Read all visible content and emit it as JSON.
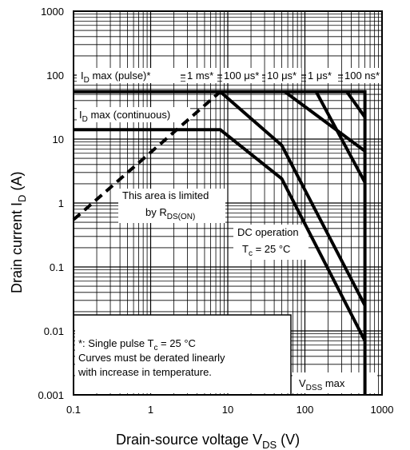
{
  "chart_data": {
    "type": "line",
    "x_scale": "log",
    "y_scale": "log",
    "xlim": [
      0.1,
      1000
    ],
    "ylim": [
      0.001,
      1000
    ],
    "grid": true,
    "x_ticks": [
      "0.1",
      "1",
      "10",
      "100",
      "1000"
    ],
    "y_ticks": [
      "1000",
      "100",
      "10",
      "1",
      "0.1",
      "0.01",
      "0.001"
    ],
    "xlabel": {
      "main": "Drain-source voltage  V",
      "sub": "DS",
      "unit": "  (V)"
    },
    "ylabel": {
      "main": "Drain current  I",
      "sub": "D",
      "unit": "  (A)"
    },
    "series": [
      {
        "style": "solid",
        "x": [
          0.1,
          600,
          600
        ],
        "y": [
          55,
          55,
          0.001
        ]
      },
      {
        "style": "solid",
        "x": [
          0.1,
          8,
          50,
          600
        ],
        "y": [
          14,
          14,
          2.4,
          0.007
        ]
      },
      {
        "style": "solid",
        "x": [
          8,
          50,
          600
        ],
        "y": [
          55,
          8,
          0.025
        ]
      },
      {
        "style": "solid",
        "x": [
          55,
          600
        ],
        "y": [
          55,
          6.5
        ]
      },
      {
        "style": "solid",
        "x": [
          140,
          600
        ],
        "y": [
          55,
          2.1
        ]
      },
      {
        "style": "solid",
        "x": [
          350,
          600
        ],
        "y": [
          55,
          22
        ]
      },
      {
        "style": "dashed",
        "x": [
          0.1,
          8
        ],
        "y": [
          0.55,
          55
        ]
      }
    ],
    "annotations": {
      "id_pulse": {
        "main": "I",
        "sub": "D",
        "rest": " max (pulse)*"
      },
      "id_cont": {
        "main": "I",
        "sub": "D",
        "rest": " max (continuous)"
      },
      "t1ms": "1 ms*",
      "t100us": "100 μs*",
      "t10us": "10 μs*",
      "t1us": "1 μs*",
      "t100ns": "100 ns*",
      "rds_line1": "This area is limited",
      "rds_line2": {
        "main": "by R",
        "sub": "DS(ON)"
      },
      "dc_line1": "DC operation",
      "dc_line2": {
        "main": "T",
        "sub": "c",
        "rest": " = 25 °C"
      },
      "note_line1": {
        "main": "*: Single pulse T",
        "sub": "c",
        "rest": " = 25 °C"
      },
      "note_line2": "Curves must be derated linearly",
      "note_line3": "with increase in temperature.",
      "vdss": {
        "main": "V",
        "sub": "DSS",
        "rest": " max"
      }
    }
  }
}
